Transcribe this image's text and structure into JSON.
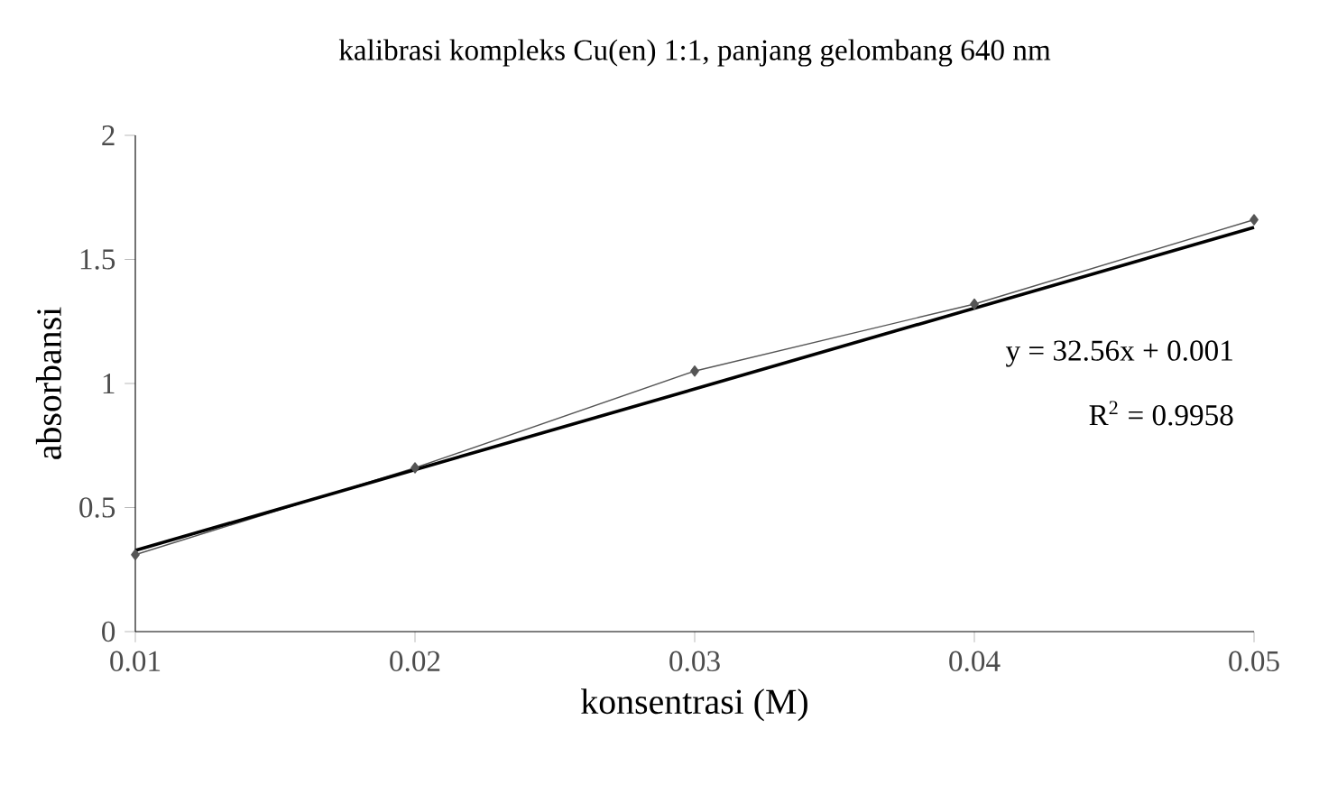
{
  "chart_data": {
    "type": "line",
    "title": "kalibrasi kompleks Cu(en) 1:1, panjang gelombang 640 nm",
    "xlabel": "konsentrasi (M)",
    "ylabel": "absorbansi",
    "x": [
      0.01,
      0.02,
      0.03,
      0.04,
      0.05
    ],
    "series": [
      {
        "color": "#555555",
        "values": [
          0.31,
          0.66,
          1.05,
          1.32,
          1.66
        ],
        "marker": "diamond"
      },
      {
        "type": "line",
        "color": "#000000",
        "x": [
          0.01,
          0.05
        ],
        "values": [
          0.327,
          1.629
        ],
        "marker": "none"
      }
    ],
    "xlim": [
      0.01,
      0.05
    ],
    "xticks": [
      0.01,
      0.02,
      0.03,
      0.04,
      0.05
    ],
    "ylim": [
      0,
      2
    ],
    "yticks": [
      0,
      0.5,
      1,
      1.5,
      2
    ],
    "annotations": [
      "y = 32.56x + 0.001",
      "R$^{2}$ = 0.9958"
    ],
    "legend": false
  }
}
